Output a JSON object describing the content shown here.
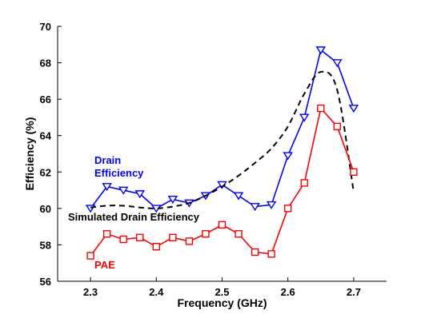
{
  "chart_data": {
    "type": "line",
    "title": "",
    "xlabel": "Frequency (GHz)",
    "ylabel": "Efficiency (%)",
    "xlim": [
      2.25,
      2.75
    ],
    "ylim": [
      56,
      70
    ],
    "xticks": [
      2.3,
      2.4,
      2.5,
      2.6,
      2.7
    ],
    "xtick_labels": [
      "2.3",
      "2.4",
      "2.5",
      "2.6",
      "2.7"
    ],
    "yticks": [
      56,
      58,
      60,
      62,
      64,
      66,
      68,
      70
    ],
    "ytick_labels": [
      "56",
      "58",
      "60",
      "62",
      "64",
      "66",
      "68",
      "70"
    ],
    "grid": false,
    "legend": "none",
    "series": [
      {
        "name": "Drain Efficiency",
        "color": "#0000ff",
        "marker": "triangle-down",
        "line": "solid",
        "x": [
          2.3,
          2.325,
          2.35,
          2.375,
          2.4,
          2.425,
          2.45,
          2.475,
          2.5,
          2.525,
          2.55,
          2.575,
          2.6,
          2.625,
          2.65,
          2.675,
          2.7
        ],
        "y": [
          60.0,
          61.2,
          61.0,
          60.8,
          60.0,
          60.5,
          60.3,
          60.7,
          61.3,
          60.7,
          60.1,
          60.2,
          62.9,
          65.0,
          68.7,
          68.0,
          65.5
        ]
      },
      {
        "name": "Simulated Drain Efficiency",
        "color": "#000000",
        "marker": "none",
        "line": "dashed",
        "x": [
          2.3,
          2.325,
          2.35,
          2.375,
          2.4,
          2.425,
          2.45,
          2.475,
          2.5,
          2.525,
          2.55,
          2.575,
          2.6,
          2.625,
          2.65,
          2.675,
          2.7
        ],
        "y": [
          60.05,
          60.15,
          60.15,
          60.05,
          60.0,
          60.1,
          60.3,
          60.7,
          61.2,
          61.8,
          62.5,
          63.3,
          64.5,
          66.3,
          67.5,
          66.5,
          60.9
        ]
      },
      {
        "name": "PAE",
        "color": "#ff0000",
        "marker": "square",
        "line": "solid",
        "x": [
          2.3,
          2.325,
          2.35,
          2.375,
          2.4,
          2.425,
          2.45,
          2.475,
          2.5,
          2.525,
          2.55,
          2.575,
          2.6,
          2.625,
          2.65,
          2.675,
          2.7
        ],
        "y": [
          57.4,
          58.6,
          58.3,
          58.4,
          57.9,
          58.4,
          58.2,
          58.6,
          59.1,
          58.6,
          57.6,
          57.5,
          60.0,
          61.4,
          65.5,
          64.5,
          62.0
        ]
      }
    ],
    "annotations": [
      {
        "lines": [
          "Drain",
          "Efficiency"
        ],
        "color": "#0000ff"
      },
      {
        "lines": [
          "Simulated Drain Efficiency"
        ],
        "color": "#000000"
      },
      {
        "lines": [
          "PAE"
        ],
        "color": "#ff0000"
      }
    ]
  }
}
